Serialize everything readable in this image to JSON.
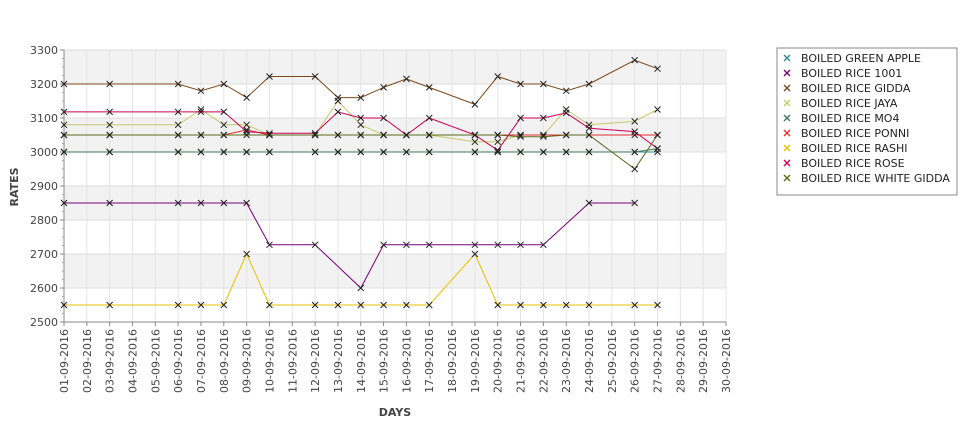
{
  "chart_data": {
    "type": "line",
    "title": "",
    "xlabel": "DAYS",
    "ylabel": "RATES",
    "ylim": [
      2500,
      3300
    ],
    "yticks": [
      2500,
      2600,
      2700,
      2800,
      2900,
      3000,
      3100,
      3200,
      3300
    ],
    "grid": true,
    "legend_position": "right",
    "categories": [
      "01-09-2016",
      "02-09-2016",
      "03-09-2016",
      "04-09-2016",
      "05-09-2016",
      "06-09-2016",
      "07-09-2016",
      "08-09-2016",
      "09-09-2016",
      "10-09-2016",
      "11-09-2016",
      "12-09-2016",
      "13-09-2016",
      "14-09-2016",
      "15-09-2016",
      "16-09-2016",
      "17-09-2016",
      "18-09-2016",
      "19-09-2016",
      "20-09-2016",
      "21-09-2016",
      "22-09-2016",
      "23-09-2016",
      "24-09-2016",
      "25-09-2016",
      "26-09-2016",
      "27-09-2016",
      "28-09-2016",
      "29-09-2016",
      "30-09-2016"
    ],
    "series": [
      {
        "name": "BOILED GREEN APPLE",
        "color": "#2e8b8b",
        "values": [
          3000,
          null,
          3000,
          null,
          null,
          3000,
          3000,
          3000,
          3000,
          3000,
          null,
          3000,
          3000,
          3000,
          3000,
          3000,
          3000,
          null,
          3000,
          3000,
          3000,
          3000,
          3000,
          3000,
          null,
          3000,
          3000,
          null,
          null,
          null
        ]
      },
      {
        "name": "BOILED RICE 1001",
        "color": "#7a007a",
        "values": [
          2850,
          null,
          2850,
          null,
          null,
          2850,
          2850,
          2850,
          2850,
          2727,
          null,
          2727,
          null,
          2600,
          2727,
          2727,
          2727,
          null,
          2727,
          2727,
          2727,
          2727,
          null,
          2850,
          null,
          2850,
          null,
          null,
          null,
          null
        ]
      },
      {
        "name": "BOILED RICE GIDDA",
        "color": "#7a4a1a",
        "values": [
          3200,
          null,
          3200,
          null,
          null,
          3200,
          3180,
          3200,
          3160,
          3222,
          null,
          3222,
          3160,
          3160,
          3190,
          3215,
          3190,
          null,
          3140,
          3222,
          3200,
          3200,
          3180,
          3200,
          null,
          3270,
          3245,
          null,
          null,
          null
        ]
      },
      {
        "name": "BOILED RICE JAYA",
        "color": "#c8c86a",
        "values": [
          3080,
          null,
          3080,
          null,
          null,
          3080,
          3125,
          3080,
          3080,
          3050,
          null,
          3050,
          3150,
          3080,
          3050,
          3050,
          3050,
          null,
          3030,
          3030,
          3050,
          3050,
          3125,
          3080,
          null,
          3090,
          3125,
          null,
          null,
          null
        ]
      },
      {
        "name": "BOILED RICE MO4",
        "color": "#3c7a5a",
        "values": [
          3000,
          null,
          3000,
          null,
          null,
          3000,
          3000,
          3000,
          3000,
          3000,
          null,
          3000,
          3000,
          3000,
          3000,
          3000,
          3000,
          null,
          3000,
          3000,
          3000,
          3000,
          3000,
          3000,
          null,
          3000,
          3010,
          null,
          null,
          null
        ]
      },
      {
        "name": "BOILED RICE PONNI",
        "color": "#e03030",
        "values": [
          3050,
          null,
          3050,
          null,
          null,
          3050,
          3050,
          3050,
          3065,
          3050,
          null,
          3050,
          3050,
          3050,
          3050,
          3050,
          3050,
          null,
          3050,
          3050,
          3050,
          3050,
          3050,
          3050,
          null,
          3050,
          3050,
          null,
          null,
          null
        ]
      },
      {
        "name": "BOILED RICE RASHI",
        "color": "#e8c000",
        "values": [
          2550,
          null,
          2550,
          null,
          null,
          2550,
          2550,
          2550,
          2700,
          2550,
          null,
          2550,
          2550,
          2550,
          2550,
          2550,
          2550,
          null,
          2700,
          2550,
          2550,
          2550,
          2550,
          2550,
          null,
          2550,
          2550,
          null,
          null,
          null
        ]
      },
      {
        "name": "BOILED RICE ROSE",
        "color": "#cc0055",
        "values": [
          3118,
          null,
          3118,
          null,
          null,
          3118,
          3118,
          3118,
          3060,
          3055,
          null,
          3055,
          3118,
          3100,
          3100,
          3050,
          3100,
          null,
          3050,
          3005,
          3100,
          3100,
          3115,
          3070,
          null,
          3060,
          3010,
          null,
          null,
          null
        ]
      },
      {
        "name": "BOILED RICE WHITE GIDDA",
        "color": "#5a6a1a",
        "values": [
          3050,
          null,
          3050,
          null,
          null,
          3050,
          3050,
          3050,
          3050,
          3050,
          null,
          3050,
          3050,
          3050,
          3050,
          3050,
          3050,
          null,
          3050,
          3050,
          3045,
          3045,
          3050,
          3050,
          null,
          2950,
          3050,
          null,
          null,
          null
        ]
      }
    ]
  }
}
